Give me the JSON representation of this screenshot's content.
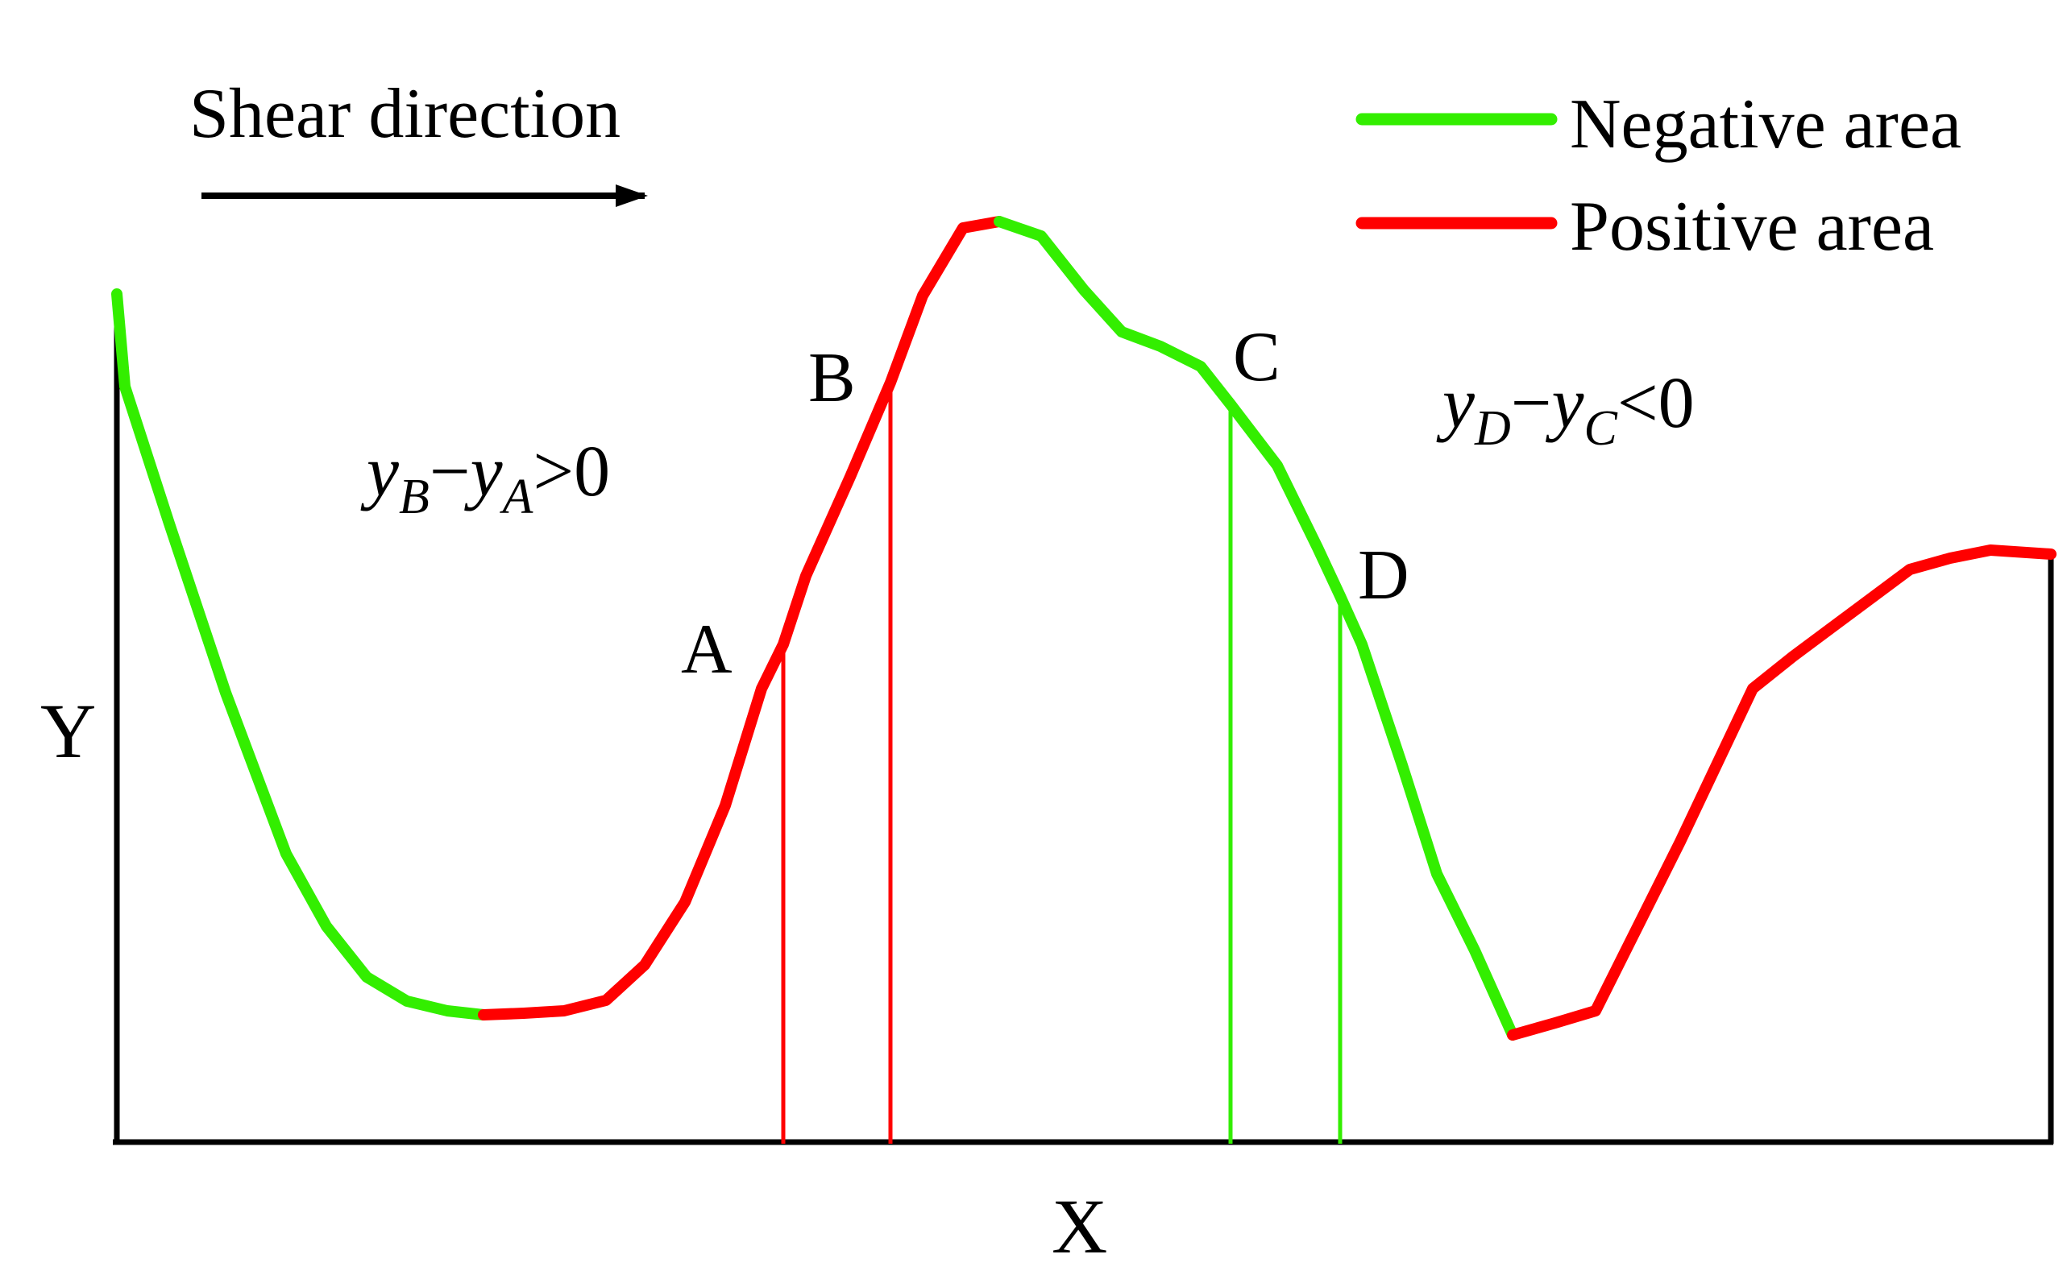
{
  "title": "Shear direction",
  "axes": {
    "x_label": "X",
    "y_label": "Y"
  },
  "legend": [
    {
      "label": "Negative area",
      "color": "#33ee00"
    },
    {
      "label": "Positive area",
      "color": "#ff0000"
    }
  ],
  "points": {
    "A": "A",
    "B": "B",
    "C": "C",
    "D": "D"
  },
  "equations": {
    "left": {
      "y1": "y",
      "sub1": "B",
      "minus": "−",
      "y2": "y",
      "sub2": "A",
      "rel": ">0"
    },
    "right": {
      "y1": "y",
      "sub1": "D",
      "minus": "−",
      "y2": "y",
      "sub2": "C",
      "rel": "<0"
    }
  },
  "colors": {
    "negative": "#33ee00",
    "positive": "#ff0000",
    "axis": "#000000"
  }
}
